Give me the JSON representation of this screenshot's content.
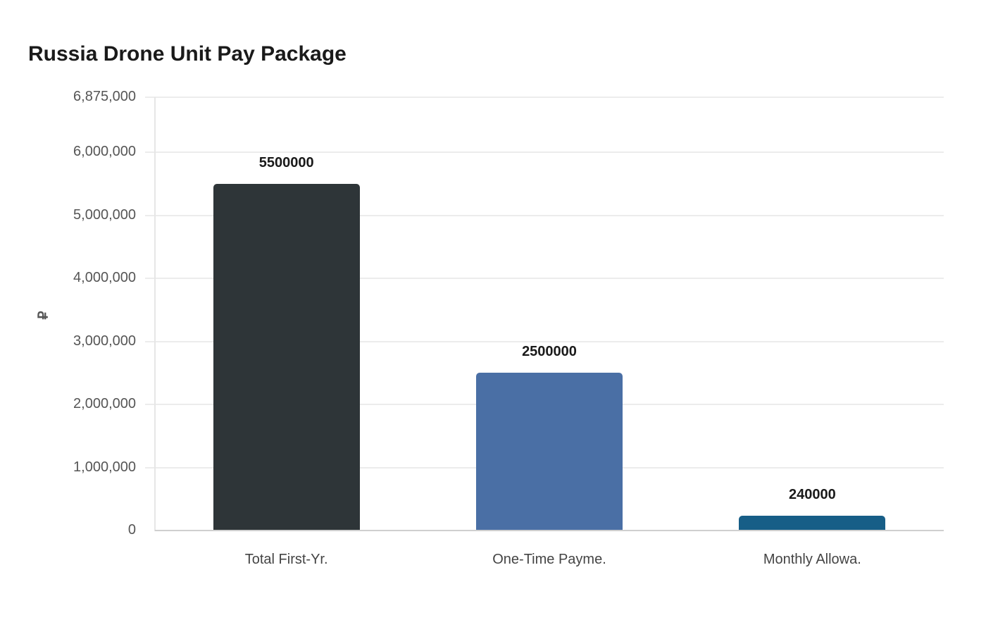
{
  "chart_data": {
    "type": "bar",
    "title": "Russia Drone Unit Pay Package",
    "xlabel": "",
    "ylabel": "₽",
    "categories": [
      "Total First-Yr.",
      "One-Time Payme.",
      "Monthly Allowa."
    ],
    "values": [
      5500000,
      2500000,
      240000
    ],
    "value_labels": [
      "5500000",
      "2500000",
      "240000"
    ],
    "colors": [
      "#2e3538",
      "#4a6fa5",
      "#175e87"
    ],
    "ylim": [
      0,
      6875000
    ],
    "yticks": [
      0,
      1000000,
      2000000,
      3000000,
      4000000,
      5000000,
      6000000,
      6875000
    ],
    "ytick_labels": [
      "0",
      "1,000,000",
      "2,000,000",
      "3,000,000",
      "4,000,000",
      "5,000,000",
      "6,000,000",
      "6,875,000"
    ],
    "grid": true,
    "legend": null
  }
}
